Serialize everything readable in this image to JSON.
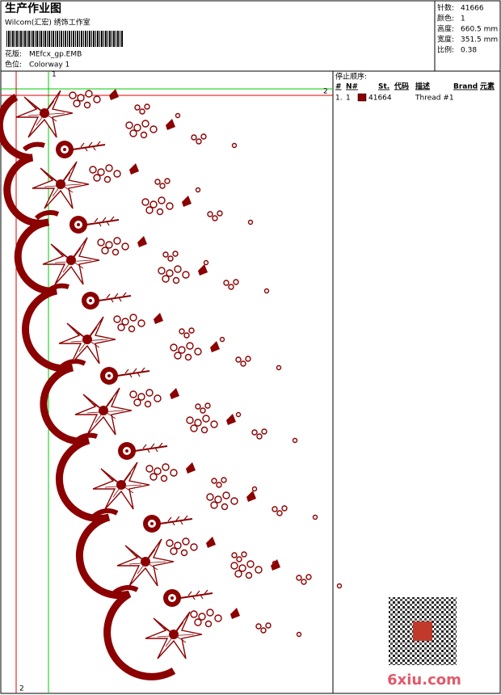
{
  "header": {
    "title": "生产作业图",
    "studio": "Wilcom(汇宏) 绣饰工作室",
    "design_label": "花版:",
    "design": "MEfcx_gp.EMB",
    "colorway_label": "色位:",
    "colorway": "Colorway 1"
  },
  "stats": [
    {
      "label": "针数:",
      "value": "41666"
    },
    {
      "label": "颜色:",
      "value": "1"
    },
    {
      "label": "高度:",
      "value": "660.5 mm"
    },
    {
      "label": "宽度:",
      "value": "351.5 mm"
    },
    {
      "label": "比例:",
      "value": "0.38"
    }
  ],
  "stop_sequence": {
    "title": "停止顺序:",
    "columns": [
      "#",
      "N#",
      "St.",
      "代码",
      "描述",
      "Brand",
      "元素"
    ],
    "rows": [
      {
        "index": "1.",
        "needle": "1",
        "code": "41664",
        "description": "Thread #1"
      }
    ]
  },
  "guides": {
    "top": "1",
    "right": "2",
    "bottom": "2"
  },
  "watermark": "6xiu.com"
}
